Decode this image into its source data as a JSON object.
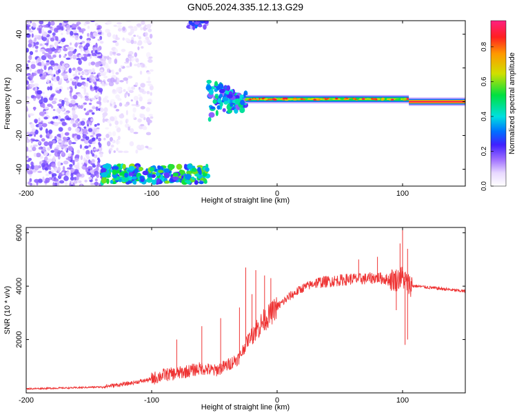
{
  "title": "GN05.2024.335.12.13.G29",
  "chart_data": [
    {
      "type": "heatmap",
      "xlabel": "Height of straight line (km)",
      "ylabel": "Frequency (Hz)",
      "xlim": [
        -200,
        150
      ],
      "ylim": [
        -50,
        48
      ],
      "xticks": [
        "-200",
        "-100",
        "0",
        "100"
      ],
      "yticks": [
        "-40",
        "-20",
        "0",
        "20",
        "40"
      ],
      "colorbar": {
        "label": "Normalized spectral amplitude",
        "range": [
          0.0,
          0.95
        ],
        "ticks": [
          "0.0",
          "0.2",
          "0.4",
          "0.6",
          "0.8"
        ]
      },
      "features": [
        {
          "kind": "scatter_noise",
          "x_range": [
            -200,
            -140
          ],
          "freq_range": [
            -50,
            48
          ],
          "amplitude": 0.15
        },
        {
          "kind": "sparse_noise",
          "x_range": [
            -140,
            -100
          ],
          "freq_range": [
            -30,
            48
          ],
          "amplitude": 0.08
        },
        {
          "kind": "strong_band",
          "x_range": [
            -140,
            -55
          ],
          "freq_range": [
            -48,
            -38
          ],
          "amplitude": 0.5
        },
        {
          "kind": "top_patch",
          "x_range": [
            -70,
            -55
          ],
          "freq_range": [
            44,
            48
          ],
          "amplitude": 0.25
        },
        {
          "kind": "rising_tone",
          "x_range": [
            -55,
            -25
          ],
          "freq_start": 8,
          "freq_end": 0,
          "amplitude": 0.4
        },
        {
          "kind": "carrier_line",
          "x_range": [
            -25,
            105
          ],
          "freq": 1.5,
          "amplitude": 0.7
        },
        {
          "kind": "carrier_line",
          "x_range": [
            105,
            150
          ],
          "freq": 0,
          "amplitude": 0.95
        }
      ]
    },
    {
      "type": "line",
      "xlabel": "Height of straight line (km)",
      "ylabel": "SNR (10 * v/v)",
      "xlim": [
        -200,
        150
      ],
      "ylim": [
        0,
        6200
      ],
      "xticks": [
        "-200",
        "-100",
        "0",
        "100"
      ],
      "yticks": [
        "2000",
        "4000",
        "6000"
      ],
      "series": [
        {
          "color": "#ee3333",
          "x": [
            -200,
            -180,
            -160,
            -140,
            -120,
            -100,
            -90,
            -80,
            -70,
            -60,
            -50,
            -40,
            -30,
            -25,
            -20,
            -15,
            -10,
            -5,
            0,
            10,
            20,
            30,
            40,
            50,
            60,
            70,
            80,
            90,
            95,
            100,
            105,
            110,
            120,
            130,
            140,
            150
          ],
          "y": [
            150,
            170,
            190,
            220,
            330,
            500,
            650,
            700,
            800,
            900,
            800,
            1000,
            1300,
            1800,
            2200,
            2400,
            2700,
            2900,
            3200,
            3600,
            3900,
            4100,
            4150,
            4200,
            4250,
            4250,
            4300,
            4200,
            4200,
            4300,
            4000,
            4000,
            3950,
            3900,
            3850,
            3800
          ],
          "spikes": [
            {
              "x": -80,
              "y": 2000
            },
            {
              "x": -60,
              "y": 2500
            },
            {
              "x": -45,
              "y": 2800
            },
            {
              "x": -30,
              "y": 3200
            },
            {
              "x": -25,
              "y": 4700
            },
            {
              "x": -20,
              "y": 3700
            },
            {
              "x": -17,
              "y": 4600
            },
            {
              "x": -10,
              "y": 4400
            },
            {
              "x": -5,
              "y": 4300
            },
            {
              "x": 65,
              "y": 5000
            },
            {
              "x": 80,
              "y": 5100
            },
            {
              "x": 98,
              "y": 5600
            },
            {
              "x": 100,
              "y": 6200
            },
            {
              "x": 104,
              "y": 5400
            }
          ],
          "dips": [
            {
              "x": 95,
              "y": 3100
            },
            {
              "x": 102,
              "y": 1800
            },
            {
              "x": 104,
              "y": 2000
            }
          ]
        }
      ]
    }
  ]
}
